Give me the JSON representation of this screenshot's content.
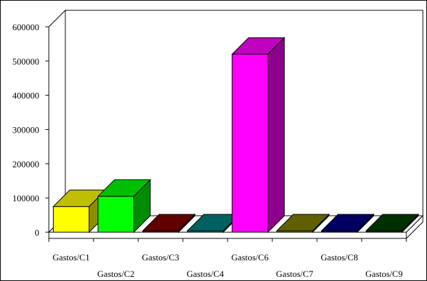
{
  "chart_data": {
    "type": "bar",
    "style": "3d",
    "title": "",
    "xlabel": "",
    "ylabel": "",
    "ylim": [
      0,
      600000
    ],
    "yticks": [
      0,
      100000,
      200000,
      300000,
      400000,
      500000,
      600000
    ],
    "grid": false,
    "legend": "none",
    "categories": [
      "Gastos/C1",
      "Gastos/C2",
      "Gastos/C3",
      "Gastos/C4",
      "Gastos/C6",
      "Gastos/C7",
      "Gastos/C8",
      "Gastos/C9"
    ],
    "values": [
      75000,
      105000,
      0,
      3000,
      520000,
      0,
      0,
      0
    ],
    "colors": [
      "#ffff00",
      "#00ff00",
      "#800000",
      "#008080",
      "#ff00ff",
      "#808000",
      "#000080",
      "#004000"
    ]
  }
}
